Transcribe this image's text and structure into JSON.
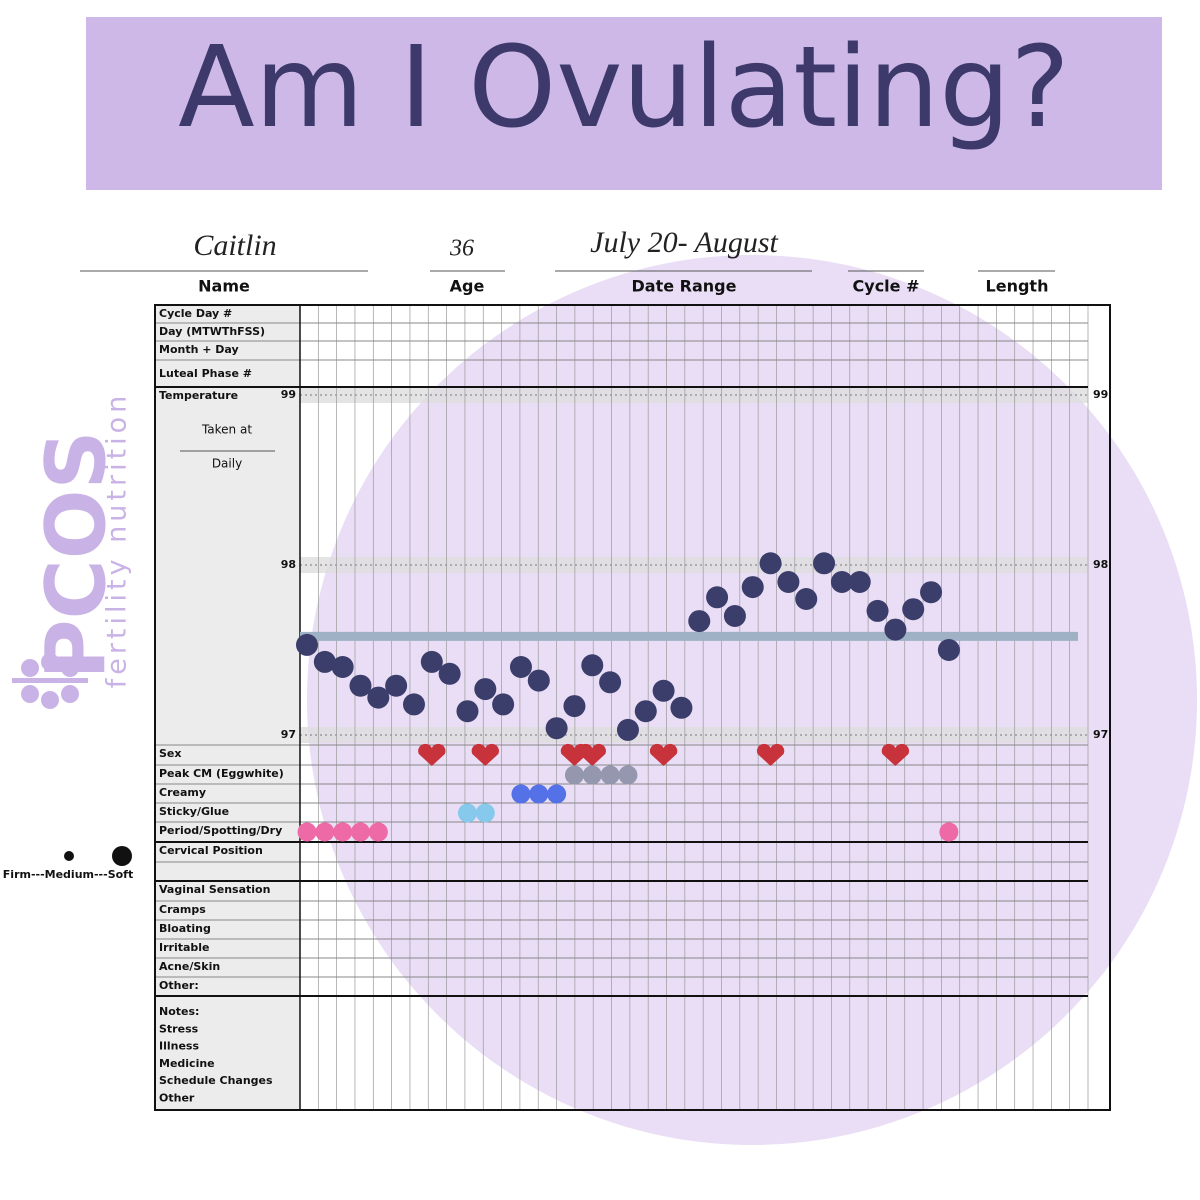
{
  "header": {
    "title": "Am I Ovulating?"
  },
  "brand": {
    "name": "PCOS",
    "tagline": "fertility nutrition"
  },
  "form": {
    "name": {
      "label": "Name",
      "value": "Caitlin"
    },
    "age": {
      "label": "Age",
      "value": "36"
    },
    "date_range": {
      "label": "Date Range",
      "value": "July 20- August"
    },
    "cycle": {
      "label": "Cycle #"
    },
    "length": {
      "label": "Length"
    }
  },
  "top_rows": [
    "Cycle Day #",
    "Day (MTWThFSS)",
    "Month + Day",
    "Luteal Phase #"
  ],
  "temperature": {
    "label": "Temperature",
    "taken_at": "Taken at",
    "daily": "Daily"
  },
  "cervix_legend": "Firm---Medium---Soft",
  "notes": [
    "Notes:",
    "Stress",
    "Illness",
    "Medicine",
    "Schedule Changes",
    "Other"
  ],
  "chart_data": {
    "type": "dot",
    "ylim": [
      97,
      99
    ],
    "yticks": [
      97,
      98,
      99
    ],
    "coverline": 97.58,
    "coverline_color": "#9fb1c4",
    "series": [
      {
        "color": "#3b3d6b",
        "values": [
          97.53,
          97.43,
          97.4,
          97.29,
          97.22,
          97.29,
          97.18,
          97.43,
          97.36,
          97.14,
          97.27,
          97.18,
          97.4,
          97.32,
          97.04,
          97.17,
          97.41,
          97.31,
          97.03,
          97.14,
          97.26,
          97.16,
          97.67,
          97.81,
          97.7,
          97.87,
          98.01,
          97.9,
          97.8,
          98.01,
          97.9,
          97.9,
          97.73,
          97.62,
          97.74,
          97.84,
          97.5
        ]
      }
    ],
    "rows": [
      {
        "label": "Sex",
        "marker": "heart",
        "color": "#c8323a",
        "days": [
          7,
          10,
          15,
          16,
          20,
          26,
          33
        ]
      },
      {
        "label": "Peak CM (Eggwhite)",
        "marker": "dot",
        "color": "#9497ad",
        "days": [
          15,
          16,
          17,
          18
        ]
      },
      {
        "label": "Creamy",
        "marker": "dot",
        "color": "#5471e8",
        "days": [
          12,
          13,
          14
        ]
      },
      {
        "label": "Sticky/Glue",
        "marker": "dot",
        "color": "#86c9ec",
        "days": [
          9,
          10
        ]
      },
      {
        "label": "Period/Spotting/Dry",
        "marker": "dot",
        "color": "#ee6aa7",
        "days": [
          0,
          1,
          2,
          3,
          4,
          36
        ]
      },
      {
        "label": "Cervical Position"
      },
      {
        "label": "Vaginal Sensation"
      },
      {
        "label": "Cramps"
      },
      {
        "label": "Bloating"
      },
      {
        "label": "Irritable"
      },
      {
        "label": "Acne/Skin"
      },
      {
        "label": "Other:"
      }
    ]
  }
}
